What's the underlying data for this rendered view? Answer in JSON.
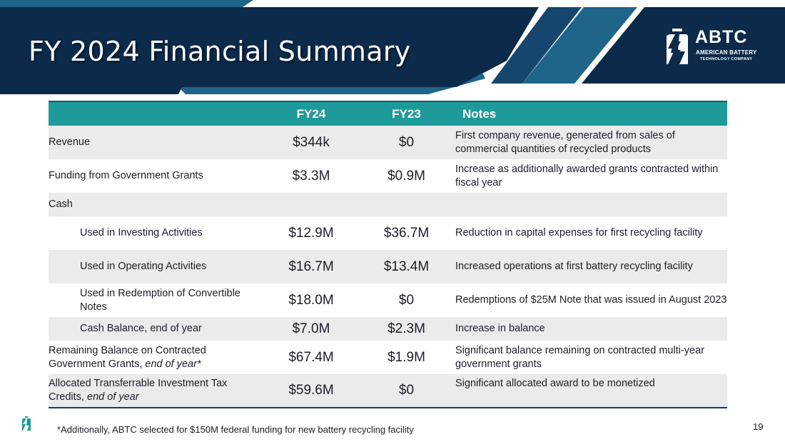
{
  "slide": {
    "title": "FY 2024 Financial Summary",
    "page_number": "19",
    "footnote": "*Additionally, ABTC selected for $150M federal funding for new battery recycling facility"
  },
  "logo": {
    "abbr": "ABTC",
    "line1": "AMERICAN BATTERY",
    "line2": "TECHNOLOGY COMPANY"
  },
  "colors": {
    "banner_dark": "#0c2a4a",
    "banner_mid": "#16466e",
    "banner_light": "#1e6589",
    "header_teal": "#1f9a9a",
    "row_shade": "#ebebeb"
  },
  "table": {
    "headers": {
      "blank": "",
      "fy24": "FY24",
      "fy23": "FY23",
      "notes": "Notes"
    },
    "rows": [
      {
        "label": "Revenue",
        "fy24": "$344k",
        "fy23": "$0",
        "notes": "First company revenue, generated from sales of commercial quantities of recycled products"
      },
      {
        "label": "Funding from Government Grants",
        "fy24": "$3.3M",
        "fy23": "$0.9M",
        "notes": "Increase as additionally awarded grants contracted within fiscal year"
      },
      {
        "label": "Cash",
        "fy24": "",
        "fy23": "",
        "notes": ""
      },
      {
        "label": "Used in Investing Activities",
        "fy24": "$12.9M",
        "fy23": "$36.7M",
        "notes": "Reduction in capital expenses for first recycling facility"
      },
      {
        "label": "Used in Operating Activities",
        "fy24": "$16.7M",
        "fy23": "$13.4M",
        "notes": "Increased operations at first battery recycling facility"
      },
      {
        "label": "Used in Redemption of Convertible Notes",
        "fy24": "$18.0M",
        "fy23": "$0",
        "notes": "Redemptions of $25M Note that was issued in August 2023"
      },
      {
        "label": "Cash Balance, end of year",
        "fy24": "$7.0M",
        "fy23": "$2.3M",
        "notes": "Increase in balance"
      },
      {
        "label": "Remaining Balance on Contracted Government Grants, ",
        "label_em": "end of year*",
        "fy24": "$67.4M",
        "fy23": "$1.9M",
        "notes": "Significant balance remaining on contracted multi-year government grants"
      },
      {
        "label": "Allocated Transferrable Investment Tax Credits, ",
        "label_em": "end of year",
        "fy24": "$59.6M",
        "fy23": "$0",
        "notes": "Significant allocated award to be monetized"
      }
    ]
  }
}
